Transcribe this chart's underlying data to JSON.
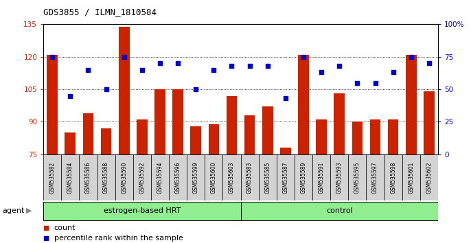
{
  "title": "GDS3855 / ILMN_1810584",
  "samples": [
    "GSM535582",
    "GSM535584",
    "GSM535586",
    "GSM535588",
    "GSM535590",
    "GSM535592",
    "GSM535594",
    "GSM535596",
    "GSM535599",
    "GSM535600",
    "GSM535603",
    "GSM535583",
    "GSM535585",
    "GSM535587",
    "GSM535589",
    "GSM535591",
    "GSM535593",
    "GSM535595",
    "GSM535597",
    "GSM535598",
    "GSM535601",
    "GSM535602"
  ],
  "bar_values": [
    121,
    85,
    94,
    87,
    134,
    91,
    105,
    105,
    88,
    89,
    102,
    93,
    97,
    78,
    121,
    91,
    103,
    90,
    91,
    91,
    121,
    104
  ],
  "dot_values": [
    75,
    45,
    65,
    50,
    75,
    65,
    70,
    70,
    50,
    65,
    68,
    68,
    68,
    43,
    75,
    63,
    68,
    55,
    55,
    63,
    75,
    70
  ],
  "groups": [
    {
      "label": "estrogen-based HRT",
      "start": 0,
      "end": 11,
      "color": "#90ee90"
    },
    {
      "label": "control",
      "start": 11,
      "end": 22,
      "color": "#90ee90"
    }
  ],
  "ymin": 75,
  "ymax": 135,
  "yticks": [
    75,
    90,
    105,
    120,
    135
  ],
  "y2min": 0,
  "y2max": 100,
  "y2ticks": [
    0,
    25,
    50,
    75,
    100
  ],
  "bar_color": "#cc2200",
  "dot_color": "#0000cc",
  "grid_color": "#000000",
  "plot_bg": "#ffffff",
  "tick_area_bg": "#d3d3d3",
  "agent_label": "agent",
  "legend_count_label": "count",
  "legend_pct_label": "percentile rank within the sample",
  "title_fontsize": 9,
  "axis_fontsize": 7.5,
  "label_fontsize": 8
}
